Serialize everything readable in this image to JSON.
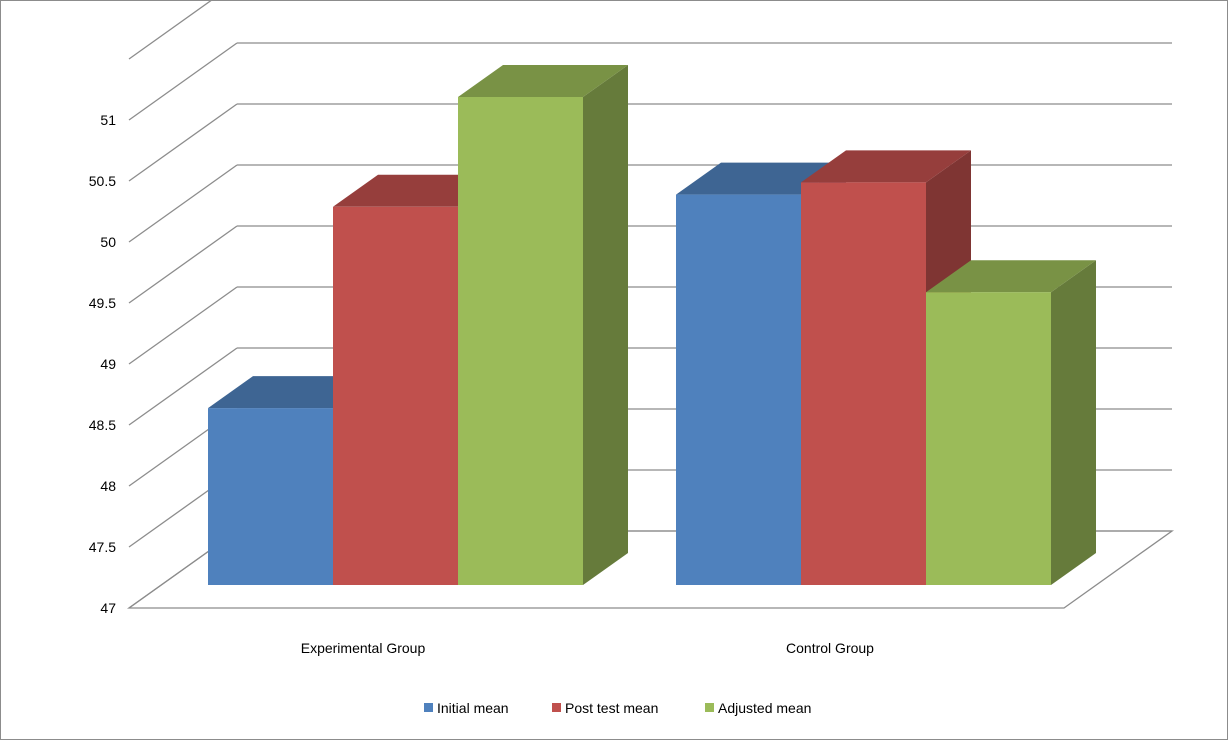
{
  "chart_data": {
    "type": "bar",
    "categories": [
      "Experimental Group",
      "Control Group"
    ],
    "series": [
      {
        "name": "Initial mean",
        "values": [
          48.45,
          50.2
        ],
        "color": "#4F81BD"
      },
      {
        "name": "Post test mean",
        "values": [
          50.1,
          50.3
        ],
        "color": "#C0504D"
      },
      {
        "name": "Adjusted mean",
        "values": [
          51.0,
          49.4
        ],
        "color": "#9BBB59"
      }
    ],
    "y_ticks": [
      "47",
      "47.5",
      "48",
      "48.5",
      "49",
      "49.5",
      "50",
      "50.5",
      "51"
    ],
    "ylim": [
      47,
      51.5
    ],
    "grid": true,
    "legend_position": "bottom",
    "style": "3d-clustered-column",
    "title": "",
    "xlabel": "",
    "ylabel": ""
  }
}
